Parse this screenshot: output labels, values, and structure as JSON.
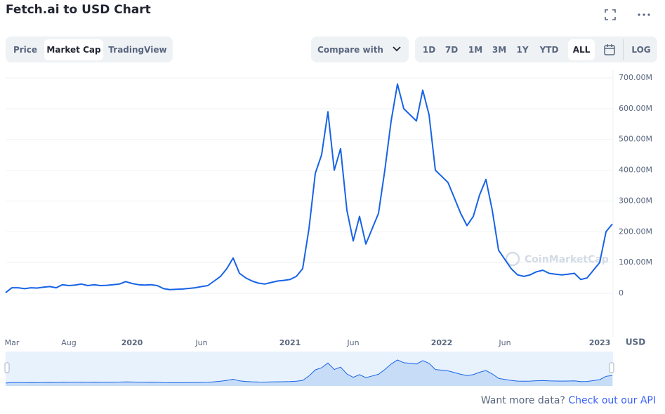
{
  "chart_data": {
    "type": "line",
    "title": "Fetch.ai to USD Chart",
    "color": "#1763e6",
    "unit_label": "USD",
    "watermark": "CoinMarketCap",
    "categories": [
      null,
      "Mar",
      null,
      null,
      null,
      null,
      null,
      null,
      null,
      null,
      "Aug",
      null,
      null,
      null,
      null,
      null,
      null,
      null,
      null,
      null,
      "2020",
      null,
      null,
      null,
      null,
      null,
      null,
      null,
      null,
      null,
      null,
      "Jun",
      null,
      null,
      null,
      null,
      null,
      null,
      null,
      null,
      null,
      null,
      null,
      null,
      null,
      "2021",
      null,
      null,
      null,
      null,
      null,
      null,
      null,
      null,
      null,
      "Jun",
      null,
      null,
      null,
      null,
      null,
      null,
      null,
      null,
      null,
      null,
      null,
      null,
      null,
      "2022",
      null,
      null,
      null,
      null,
      null,
      null,
      null,
      null,
      null,
      "Jun",
      null,
      null,
      null,
      null,
      null,
      null,
      null,
      null,
      null,
      null,
      null,
      null,
      null,
      null,
      "2023",
      null,
      null
    ],
    "values": [
      2,
      18,
      18,
      15,
      18,
      17,
      20,
      22,
      18,
      28,
      25,
      27,
      30,
      25,
      28,
      25,
      26,
      28,
      30,
      38,
      32,
      28,
      27,
      28,
      25,
      15,
      12,
      13,
      14,
      16,
      18,
      22,
      25,
      40,
      55,
      80,
      115,
      65,
      50,
      40,
      33,
      30,
      35,
      40,
      42,
      45,
      55,
      80,
      210,
      390,
      450,
      590,
      400,
      470,
      270,
      170,
      250,
      160,
      210,
      260,
      400,
      560,
      680,
      600,
      580,
      560,
      660,
      580,
      400,
      380,
      360,
      310,
      260,
      220,
      250,
      320,
      370,
      270,
      140,
      110,
      80,
      60,
      55,
      60,
      70,
      75,
      65,
      62,
      60,
      62,
      65,
      45,
      50,
      75,
      100,
      200,
      225
    ],
    "ylim": [
      0,
      700
    ],
    "yticks": [
      0,
      {
        "value": 100,
        "label": "100.00M"
      },
      {
        "value": 200,
        "label": "200.00M"
      },
      {
        "value": 300,
        "label": "300.00M"
      },
      {
        "value": 400,
        "label": "400.00M"
      },
      {
        "value": 500,
        "label": "500.00M"
      },
      {
        "value": 600,
        "label": "600.00M"
      },
      {
        "value": 700,
        "label": "700.00M"
      }
    ],
    "grid": true
  },
  "ui": {
    "tabs": [
      "Price",
      "Market Cap",
      "TradingView"
    ],
    "compare": "Compare with",
    "ranges": [
      "1D",
      "7D",
      "1M",
      "3M",
      "1Y",
      "YTD",
      "ALL"
    ],
    "log": "LOG",
    "api_text": "Want more data?",
    "api_link": "Check out our API"
  }
}
